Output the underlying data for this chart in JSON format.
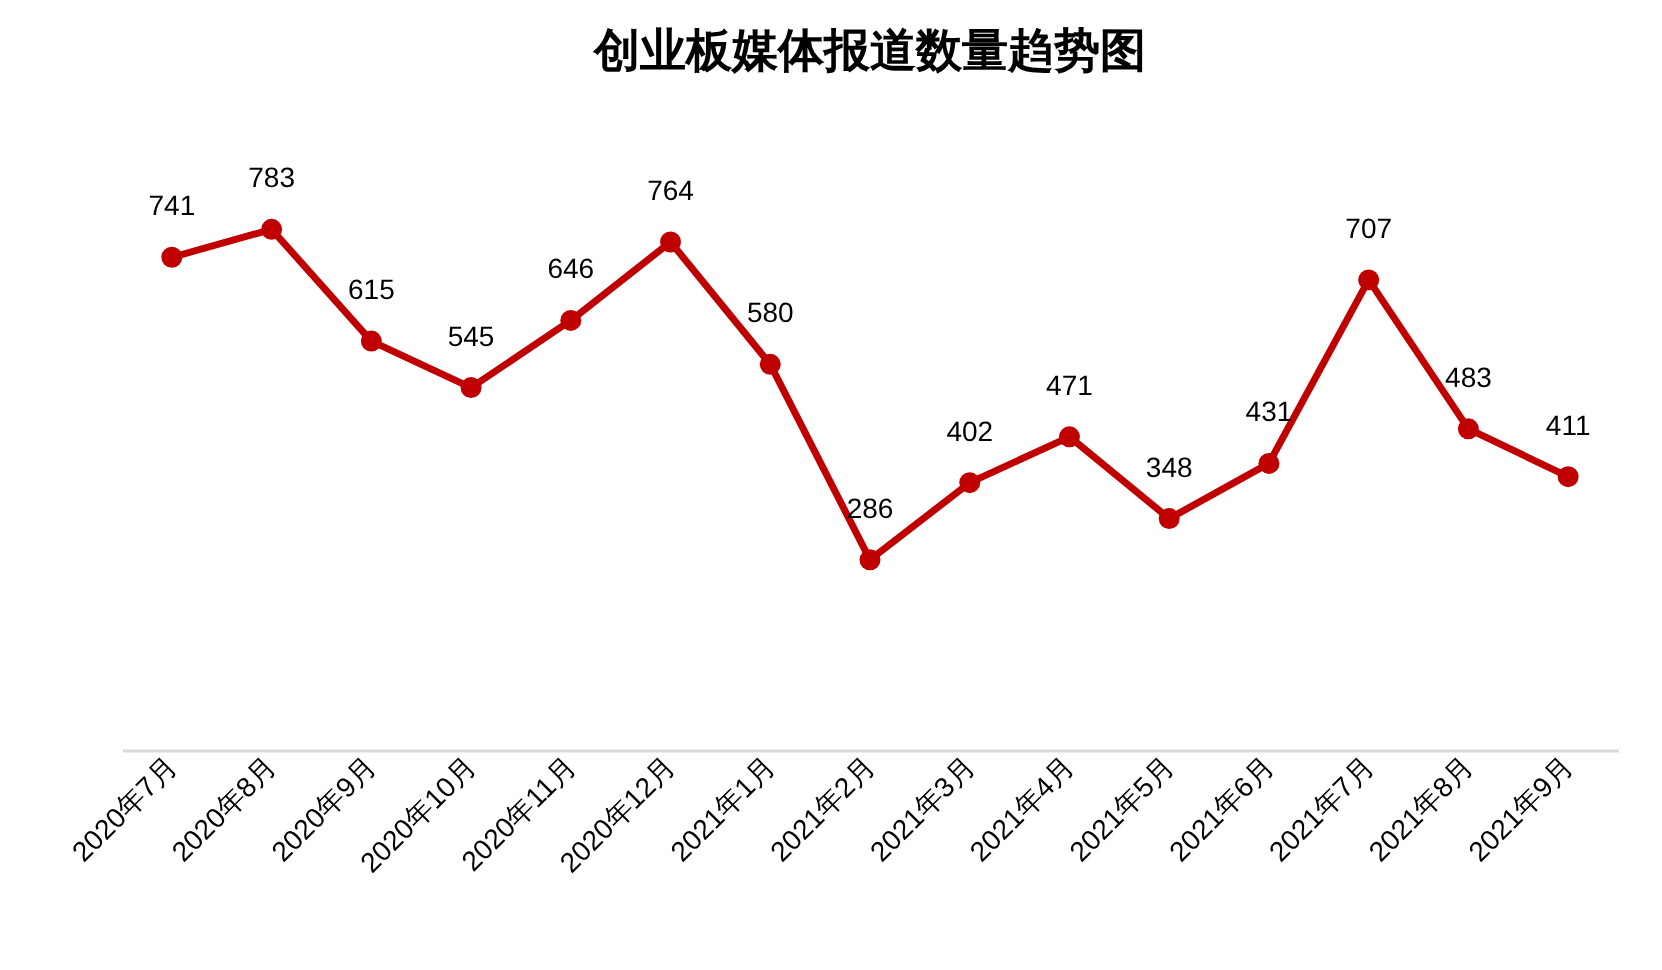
{
  "chart_data": {
    "type": "line",
    "title": "创业板媒体报道数量趋势图",
    "categories": [
      "2020年7月",
      "2020年8月",
      "2020年9月",
      "2020年10月",
      "2020年11月",
      "2020年12月",
      "2021年1月",
      "2021年2月",
      "2021年3月",
      "2021年4月",
      "2021年5月",
      "2021年6月",
      "2021年7月",
      "2021年8月",
      "2021年9月"
    ],
    "values": [
      741,
      783,
      615,
      545,
      646,
      764,
      580,
      286,
      402,
      471,
      348,
      431,
      707,
      483,
      411
    ],
    "color": "#c00000",
    "marker": "circle",
    "data_labels": true
  }
}
